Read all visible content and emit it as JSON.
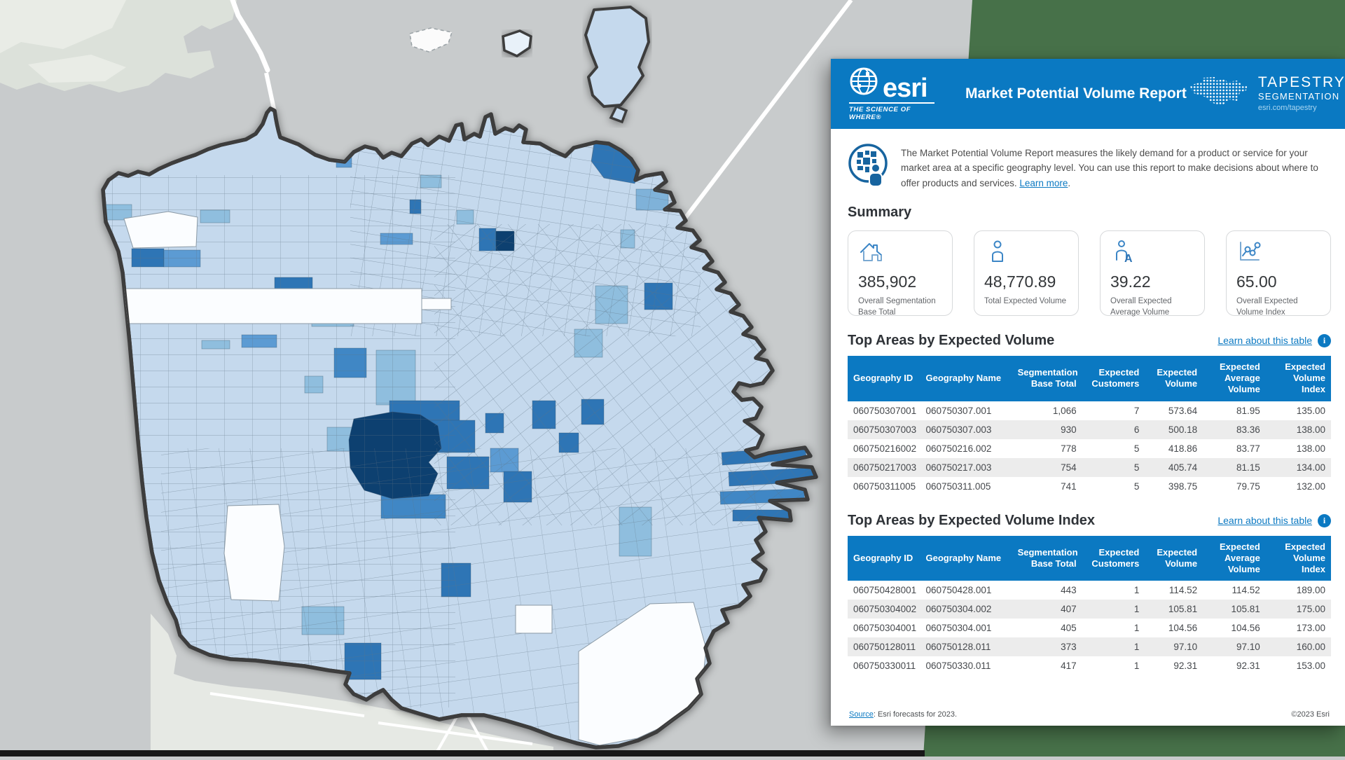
{
  "backdrop": {
    "green_color": "#477149",
    "bottom_bar_color": "#181818"
  },
  "map": {
    "name": "san-francisco-tract-choropleth",
    "palette": {
      "water": "#c8cbcc",
      "land": "#dce1da",
      "tract_base": "#c5d9ed",
      "tract_light_medium": "#8fbede",
      "tract_medium": "#5b9bd3",
      "tract_dark": "#2e74b5",
      "tract_navy": "#0e3f6f",
      "tract_white": "#fbfdff",
      "boundary": "#3e3e3e",
      "road": "#ffffff"
    }
  },
  "report": {
    "header": {
      "logo_word": "esri",
      "logo_tagline": "THE SCIENCE OF WHERE®",
      "title": "Market Potential Volume Report",
      "brand_line1": "TAPESTRY",
      "brand_line2": "SEGMENTATION",
      "brand_url": "esri.com/tapestry"
    },
    "intro": {
      "text": "The Market Potential Volume Report measures the likely demand for a product or service for your market area at a specific geography level. You can use this report to make decisions about where to offer products and services.",
      "link": "Learn more",
      "after_link": "."
    },
    "summary": {
      "heading": "Summary",
      "cards": [
        {
          "icon": "house-icon",
          "value": "385,902",
          "label": "Overall Segmentation Base Total"
        },
        {
          "icon": "person-icon",
          "value": "48,770.89",
          "label": "Total Expected Volume"
        },
        {
          "icon": "person-a-icon",
          "value": "39.22",
          "label": "Overall Expected Average Volume"
        },
        {
          "icon": "chart-dots-icon",
          "value": "65.00",
          "label": "Overall Expected Volume Index"
        }
      ]
    },
    "sections": [
      {
        "heading": "Top Areas by Expected Volume",
        "link": "Learn about this table",
        "columns": [
          "Geography ID",
          "Geography Name",
          "Segmentation Base Total",
          "Expected Customers",
          "Expected Volume",
          "Expected Average Volume",
          "Expected Volume Index"
        ],
        "rows": [
          [
            "060750307001",
            "060750307.001",
            "1,066",
            "7",
            "573.64",
            "81.95",
            "135.00"
          ],
          [
            "060750307003",
            "060750307.003",
            "930",
            "6",
            "500.18",
            "83.36",
            "138.00"
          ],
          [
            "060750216002",
            "060750216.002",
            "778",
            "5",
            "418.86",
            "83.77",
            "138.00"
          ],
          [
            "060750217003",
            "060750217.003",
            "754",
            "5",
            "405.74",
            "81.15",
            "134.00"
          ],
          [
            "060750311005",
            "060750311.005",
            "741",
            "5",
            "398.75",
            "79.75",
            "132.00"
          ]
        ]
      },
      {
        "heading": "Top Areas by Expected Volume Index",
        "link": "Learn about this table",
        "columns": [
          "Geography ID",
          "Geography Name",
          "Segmentation Base Total",
          "Expected Customers",
          "Expected Volume",
          "Expected Average Volume",
          "Expected Volume Index"
        ],
        "rows": [
          [
            "060750428001",
            "060750428.001",
            "443",
            "1",
            "114.52",
            "114.52",
            "189.00"
          ],
          [
            "060750304002",
            "060750304.002",
            "407",
            "1",
            "105.81",
            "105.81",
            "175.00"
          ],
          [
            "060750304001",
            "060750304.001",
            "405",
            "1",
            "104.56",
            "104.56",
            "173.00"
          ],
          [
            "060750128011",
            "060750128.011",
            "373",
            "1",
            "97.10",
            "97.10",
            "160.00"
          ],
          [
            "060750330011",
            "060750330.011",
            "417",
            "1",
            "92.31",
            "92.31",
            "153.00"
          ]
        ]
      }
    ],
    "footer": {
      "source_label": "Source",
      "source_text": ": Esri forecasts for 2023.",
      "copyright": "©2023 Esri"
    }
  }
}
